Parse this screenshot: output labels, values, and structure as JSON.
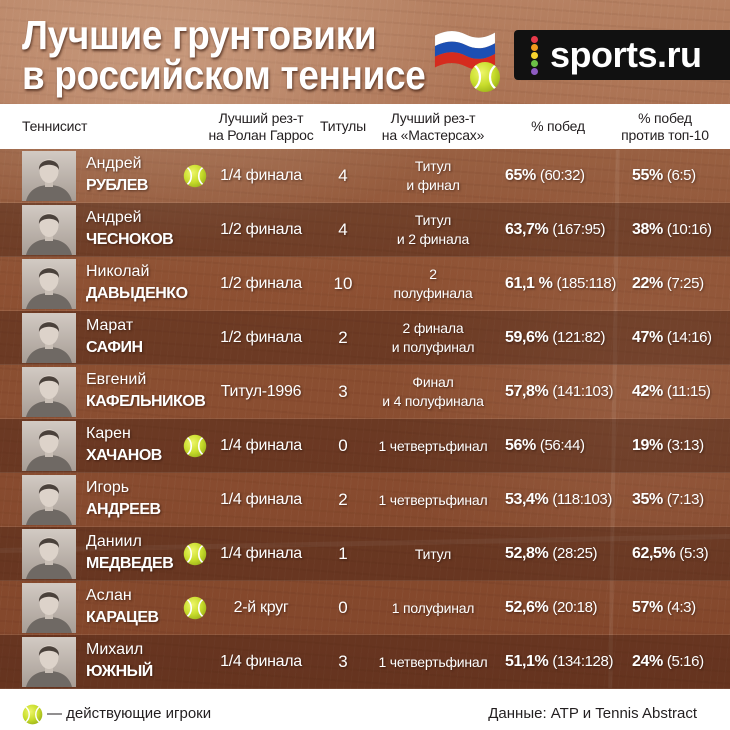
{
  "title": {
    "line1": "Лучшие грунтовики",
    "line2": "в российском теннисе"
  },
  "logo": {
    "text": "sports.ru",
    "dot_colors": [
      "#e8394a",
      "#f39a1e",
      "#f6d32d",
      "#6cbf46",
      "#8e5bc2"
    ]
  },
  "icons": {
    "flag": "russia-flag-icon",
    "ball": "tennis-ball-icon",
    "player_photo": "player-portrait"
  },
  "colors": {
    "clay": "#9a5a3b",
    "header_band": "#ffffff",
    "footer_band": "#ffffff",
    "row_text": "#ffffff",
    "header_text": "#231f20",
    "ball": "#c8dd2c",
    "logo_bg": "#111111",
    "flag_white": "#ffffff",
    "flag_blue": "#1c4fb3",
    "flag_red": "#d52b1e"
  },
  "chart_data": {
    "type": "table",
    "columns": [
      "Теннисист",
      "Лучший рез-т\nна Ролан Гаррос",
      "Титулы",
      "Лучший рез-т\nна «Мастерсах»",
      "% побед",
      "% побед\nпротив топ-10"
    ],
    "rows": [
      {
        "first_name": "Андрей",
        "last_name": "РУБЛЕВ",
        "active": true,
        "roland_garros": "1/4 финала",
        "titles": 4,
        "masters": "Титул\nи финал",
        "win_pct": "65%",
        "win_record": "(60:32)",
        "top10_pct": "55%",
        "top10_record": "(6:5)"
      },
      {
        "first_name": "Андрей",
        "last_name": "ЧЕСНОКОВ",
        "active": false,
        "roland_garros": "1/2 финала",
        "titles": 4,
        "masters": "Титул\nи 2 финала",
        "win_pct": "63,7%",
        "win_record": "(167:95)",
        "top10_pct": "38%",
        "top10_record": "(10:16)"
      },
      {
        "first_name": "Николай",
        "last_name": "ДАВЫДЕНКО",
        "active": false,
        "roland_garros": "1/2 финала",
        "titles": 10,
        "masters": "2\nполуфинала",
        "win_pct": "61,1 %",
        "win_record": "(185:118)",
        "top10_pct": "22%",
        "top10_record": "(7:25)"
      },
      {
        "first_name": "Марат",
        "last_name": "САФИН",
        "active": false,
        "roland_garros": "1/2 финала",
        "titles": 2,
        "masters": "2 финала\nи полуфинал",
        "win_pct": "59,6%",
        "win_record": "(121:82)",
        "top10_pct": "47%",
        "top10_record": "(14:16)"
      },
      {
        "first_name": "Евгений",
        "last_name": "КАФЕЛЬНИКОВ",
        "active": false,
        "roland_garros": "Титул-1996",
        "titles": 3,
        "masters": "Финал\nи 4 полуфинала",
        "win_pct": "57,8%",
        "win_record": "(141:103)",
        "top10_pct": "42%",
        "top10_record": "(11:15)"
      },
      {
        "first_name": "Карен",
        "last_name": "ХАЧАНОВ",
        "active": true,
        "roland_garros": "1/4 финала",
        "titles": 0,
        "masters": "1 четвертьфинал",
        "win_pct": "56%",
        "win_record": "(56:44)",
        "top10_pct": "19%",
        "top10_record": "(3:13)"
      },
      {
        "first_name": "Игорь",
        "last_name": "АНДРЕЕВ",
        "active": false,
        "roland_garros": "1/4 финала",
        "titles": 2,
        "masters": "1 четвертьфинал",
        "win_pct": "53,4%",
        "win_record": "(118:103)",
        "top10_pct": "35%",
        "top10_record": "(7:13)"
      },
      {
        "first_name": "Даниил",
        "last_name": "МЕДВЕДЕВ",
        "active": true,
        "roland_garros": "1/4 финала",
        "titles": 1,
        "masters": "Титул",
        "win_pct": "52,8%",
        "win_record": "(28:25)",
        "top10_pct": "62,5%",
        "top10_record": "(5:3)"
      },
      {
        "first_name": "Аслан",
        "last_name": "КАРАЦЕВ",
        "active": true,
        "roland_garros": "2-й круг",
        "titles": 0,
        "masters": "1 полуфинал",
        "win_pct": "52,6%",
        "win_record": "(20:18)",
        "top10_pct": "57%",
        "top10_record": "(4:3)"
      },
      {
        "first_name": "Михаил",
        "last_name": "ЮЖНЫЙ",
        "active": false,
        "roland_garros": "1/4 финала",
        "titles": 3,
        "masters": "1 четвертьфинал",
        "win_pct": "51,1%",
        "win_record": "(134:128)",
        "top10_pct": "24%",
        "top10_record": "(5:16)"
      }
    ]
  },
  "footer": {
    "legend": "— действующие игроки",
    "source": "Данные: ATP и Tennis Abstract"
  }
}
